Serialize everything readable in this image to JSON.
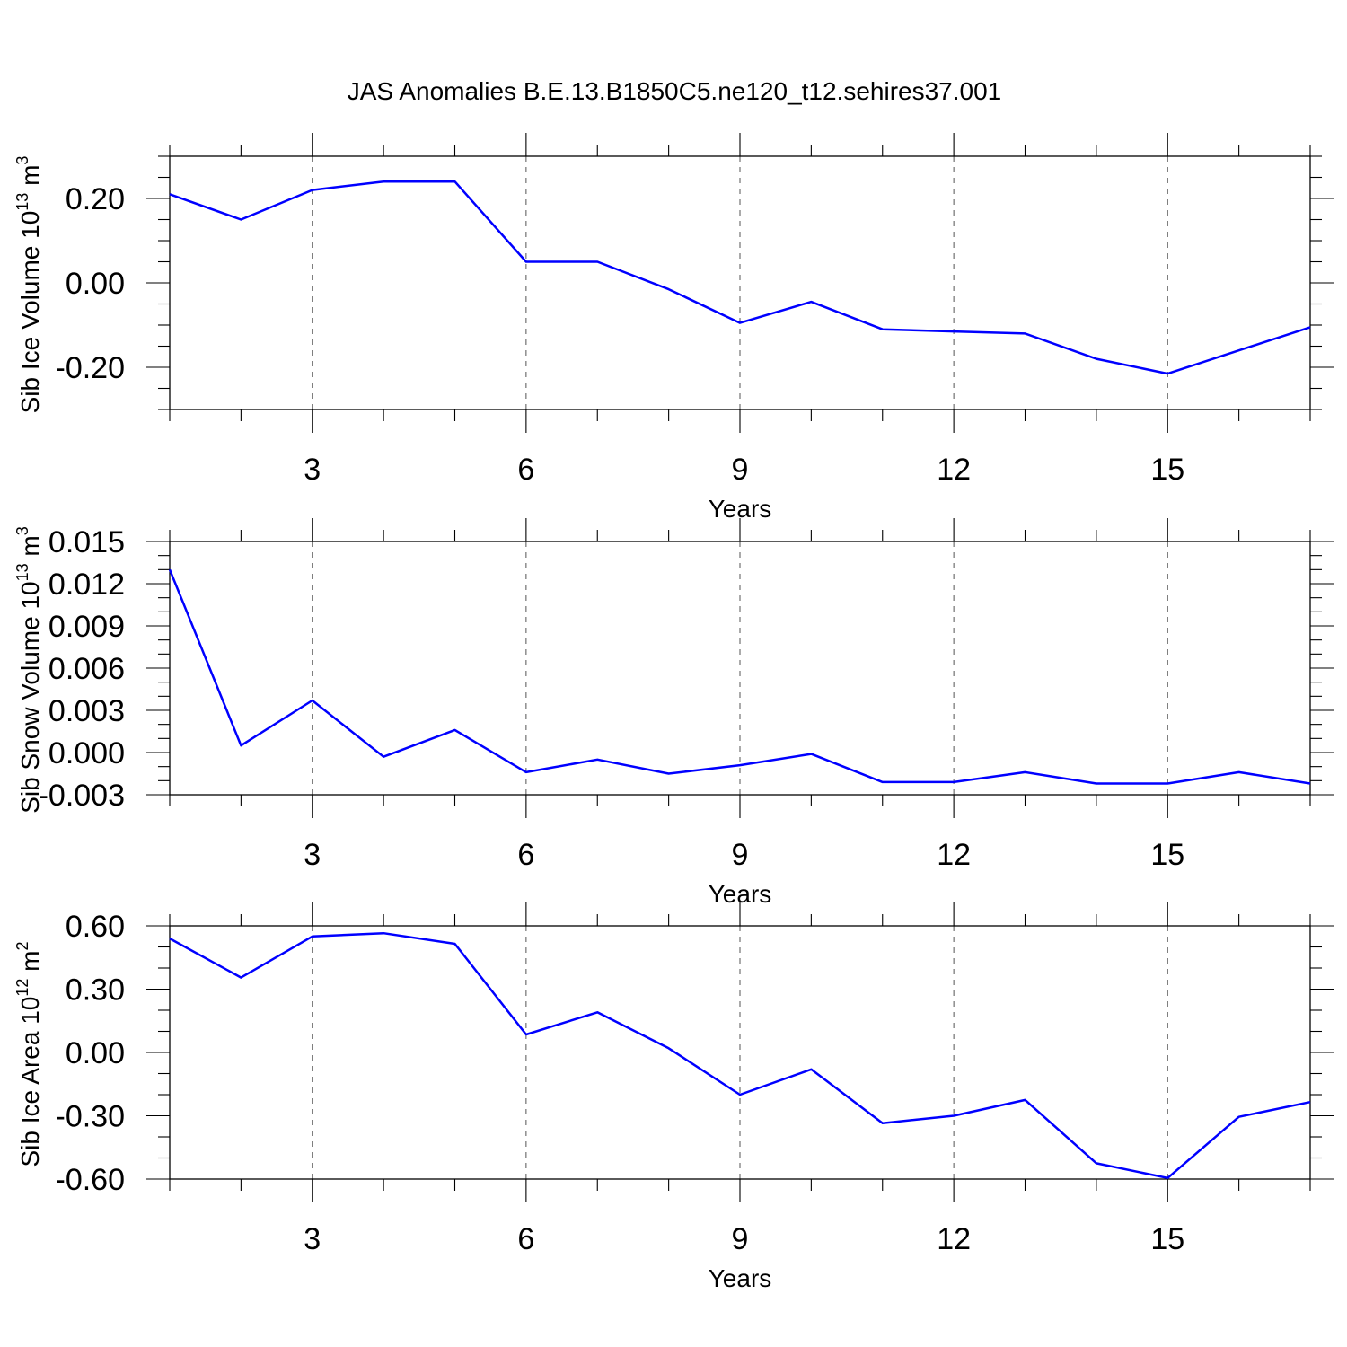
{
  "title": "JAS Anomalies B.E.13.B1850C5.ne120_t12.sehires37.001",
  "line_color": "#0000ff",
  "chart_data": [
    {
      "type": "line",
      "xlabel": "Years",
      "ylabel": "Sib Ice Volume 10",
      "ylabel_exp": "13",
      "ylabel_unit": " m",
      "ylabel_unit_exp": "3",
      "x": [
        1,
        2,
        3,
        4,
        5,
        6,
        7,
        8,
        9,
        10,
        11,
        12,
        13,
        14,
        15,
        16,
        17
      ],
      "values": [
        0.21,
        0.15,
        0.22,
        0.24,
        0.24,
        0.05,
        0.05,
        -0.015,
        -0.095,
        -0.045,
        -0.11,
        -0.115,
        -0.12,
        -0.18,
        -0.215,
        -0.16,
        -0.105
      ],
      "xlim": [
        1,
        17
      ],
      "ylim": [
        -0.3,
        0.3
      ],
      "xticks": [
        3,
        6,
        9,
        12,
        15
      ],
      "xtick_labels": [
        "3",
        "6",
        "9",
        "12",
        "15"
      ],
      "yticks": [
        0.2,
        0,
        -0.2
      ],
      "ytick_labels": [
        "0.20",
        "0.00",
        "-0.20"
      ],
      "yminor": 0.05,
      "grid": "vertical dashed"
    },
    {
      "type": "line",
      "xlabel": "Years",
      "ylabel": "Sib Snow Volume 10",
      "ylabel_exp": "13",
      "ylabel_unit": " m",
      "ylabel_unit_exp": "3",
      "x": [
        1,
        2,
        3,
        4,
        5,
        6,
        7,
        8,
        9,
        10,
        11,
        12,
        13,
        14,
        15,
        16,
        17
      ],
      "values": [
        0.013,
        0.0005,
        0.0037,
        -0.0003,
        0.0016,
        -0.0014,
        -0.0005,
        -0.0015,
        -0.0009,
        -0.0001,
        -0.0021,
        -0.0021,
        -0.0014,
        -0.0022,
        -0.0022,
        -0.0014,
        -0.0022
      ],
      "xlim": [
        1,
        17
      ],
      "ylim": [
        -0.003,
        0.015
      ],
      "xticks": [
        3,
        6,
        9,
        12,
        15
      ],
      "xtick_labels": [
        "3",
        "6",
        "9",
        "12",
        "15"
      ],
      "yticks": [
        0.015,
        0.012,
        0.009,
        0.006,
        0.003,
        0,
        -0.003
      ],
      "ytick_labels": [
        "0.015",
        "0.012",
        "0.009",
        "0.006",
        "0.003",
        "0.000",
        "-0.003"
      ],
      "yminor": 0.001,
      "grid": "vertical dashed"
    },
    {
      "type": "line",
      "xlabel": "Years",
      "ylabel": "Sib Ice Area 10",
      "ylabel_exp": "12",
      "ylabel_unit": " m",
      "ylabel_unit_exp": "2",
      "x": [
        1,
        2,
        3,
        4,
        5,
        6,
        7,
        8,
        9,
        10,
        11,
        12,
        13,
        14,
        15,
        16,
        17
      ],
      "values": [
        0.54,
        0.355,
        0.55,
        0.565,
        0.515,
        0.085,
        0.19,
        0.02,
        -0.2,
        -0.08,
        -0.335,
        -0.3,
        -0.225,
        -0.525,
        -0.595,
        -0.305,
        -0.235
      ],
      "xlim": [
        1,
        17
      ],
      "ylim": [
        -0.6,
        0.6
      ],
      "xticks": [
        3,
        6,
        9,
        12,
        15
      ],
      "xtick_labels": [
        "3",
        "6",
        "9",
        "12",
        "15"
      ],
      "yticks": [
        0.6,
        0.3,
        0,
        -0.3,
        -0.6
      ],
      "ytick_labels": [
        "0.60",
        "0.30",
        "0.00",
        "-0.30",
        "-0.60"
      ],
      "yminor": 0.1,
      "grid": "vertical dashed"
    }
  ]
}
